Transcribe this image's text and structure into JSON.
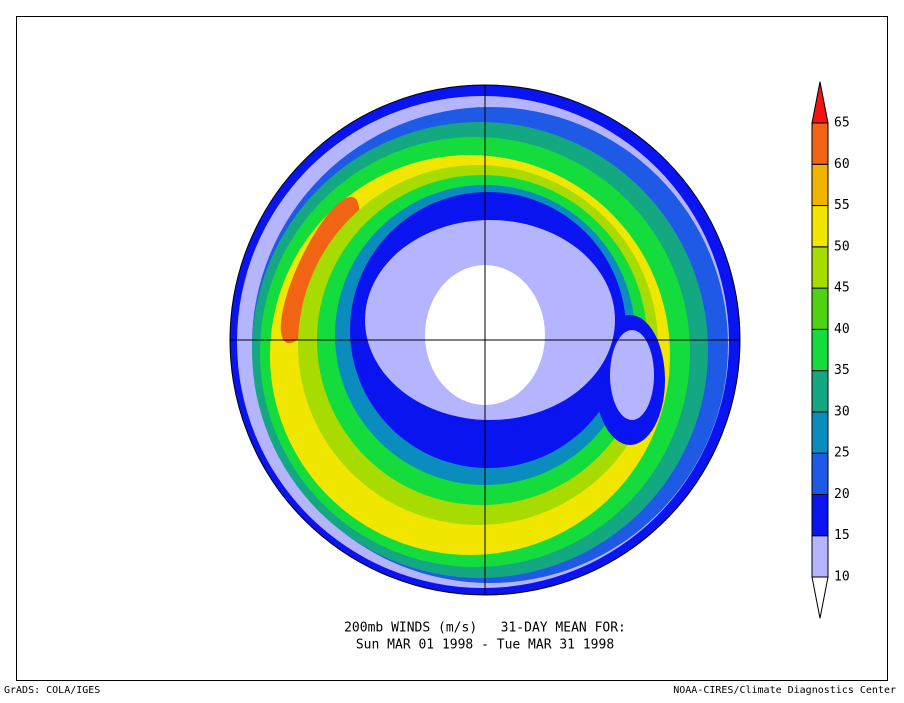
{
  "map": {
    "title": [
      "200mb WINDS (m/s)   31-DAY MEAN FOR:",
      "Sun MAR 01 1998 - Tue MAR 31 1998"
    ],
    "footer_left": "GrADS: COLA/IGES",
    "footer_right": "NOAA-CIRES/Climate Diagnostics Center",
    "colorbar": {
      "levels": [
        10,
        15,
        20,
        25,
        30,
        35,
        40,
        45,
        50,
        55,
        60,
        65
      ],
      "colors": [
        "#ffffff",
        "#b4b4ff",
        "#0a14f0",
        "#1e5ae6",
        "#0a8cbe",
        "#14a882",
        "#14dc3c",
        "#50d214",
        "#a8dc00",
        "#f0e600",
        "#f0b400",
        "#f06414",
        "#f01414"
      ]
    }
  }
}
